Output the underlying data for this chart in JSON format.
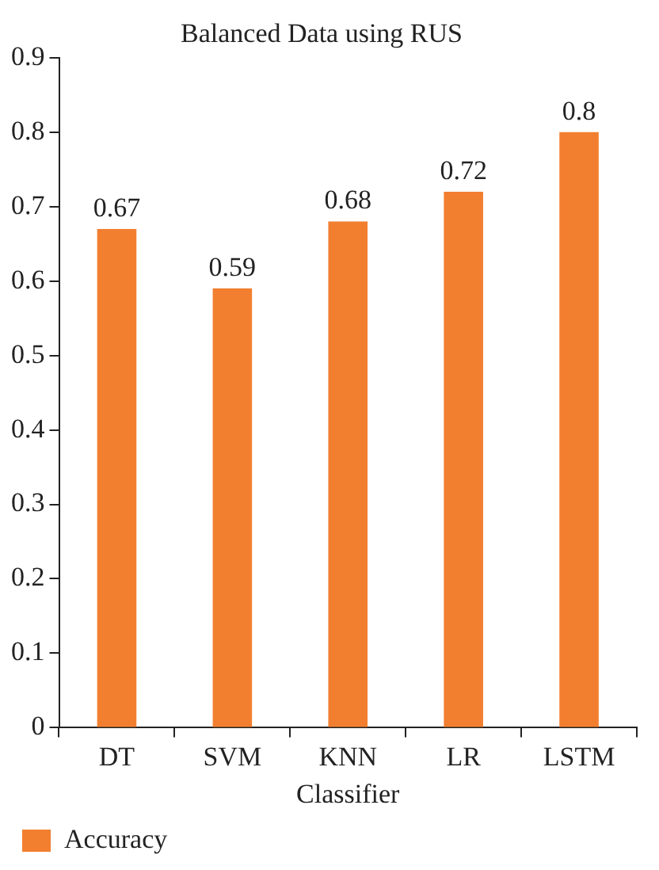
{
  "chart_data": {
    "type": "bar",
    "title": "Balanced Data using RUS",
    "xlabel": "Classifier",
    "categories": [
      "DT",
      "SVM",
      "KNN",
      "LR",
      "LSTM"
    ],
    "series": [
      {
        "name": "Accuracy",
        "color": "#f27f30",
        "values": [
          0.67,
          0.59,
          0.68,
          0.72,
          0.8
        ]
      }
    ],
    "ylim": [
      0,
      0.9
    ],
    "yticks": [
      0,
      0.1,
      0.2,
      0.3,
      0.4,
      0.5,
      0.6,
      0.7,
      0.8,
      0.9
    ],
    "grid": false,
    "legend": "bottom left",
    "data_labels": true
  }
}
